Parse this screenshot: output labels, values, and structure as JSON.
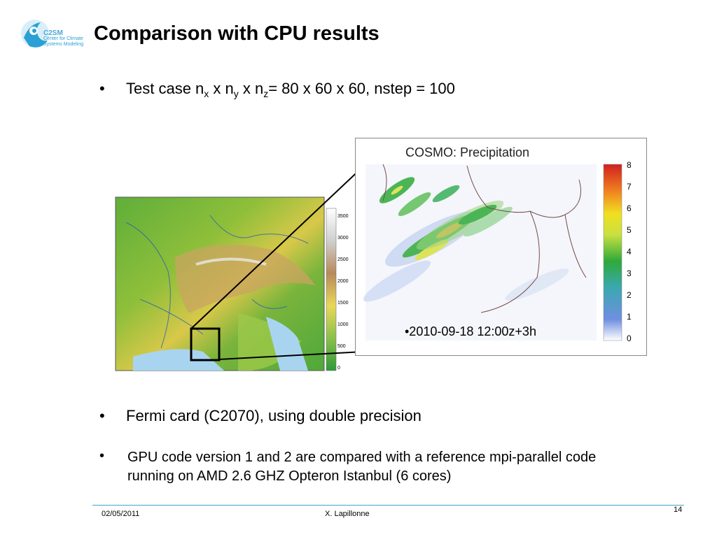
{
  "logo": {
    "line1": "C2SM",
    "line2": "Center for Climate",
    "line3": "Systems Modeling"
  },
  "title": "Comparison with CPU results",
  "bullets": {
    "bullet_char": "•",
    "test_case": {
      "prefix": "Test case n",
      "sub_x": "x",
      "mid1": " x n",
      "sub_y": "y",
      "mid2": " x n",
      "sub_z": "z",
      "suffix": "= 80 x 60 x 60, nstep = 100"
    },
    "fermi": "Fermi card (C2070), using double precision",
    "gpu_line1": "GPU code version 1 and 2 are compared with a reference mpi-parallel code",
    "gpu_line2": "running on AMD 2.6 GHZ Opteron Istanbul (6 cores)"
  },
  "topo_map": {
    "colorbar_ticks": [
      "3500",
      "3000",
      "2500",
      "2000",
      "1500",
      "1000",
      "500",
      "0"
    ]
  },
  "precip_map": {
    "title": "COSMO: Precipitation",
    "colorbar_ticks": [
      "8",
      "7",
      "6",
      "5",
      "4",
      "3",
      "2",
      "1",
      "0"
    ],
    "timestamp": "•2010-09-18 12:00z+3h"
  },
  "footer": {
    "date": "02/05/2011",
    "author": "X. Lapillonne",
    "page": "14"
  }
}
